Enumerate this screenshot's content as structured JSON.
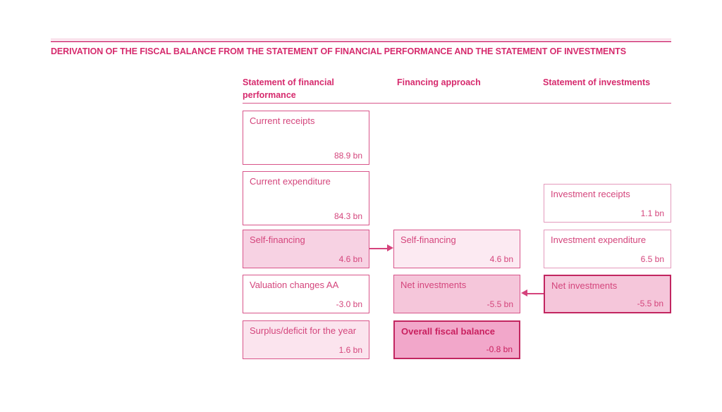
{
  "title": "DERIVATION OF THE FISCAL BALANCE FROM THE STATEMENT OF FINANCIAL PERFORMANCE AND THE STATEMENT OF INVESTMENTS",
  "columns": [
    {
      "label": "Statement of financial performance",
      "boxes": [
        {
          "label": "Current receipts",
          "value": "88.9 bn"
        },
        {
          "label": "Current expenditure",
          "value": "84.3 bn"
        },
        {
          "label": "Self-financing",
          "value": "4.6 bn"
        },
        {
          "label": "Valuation changes AA",
          "value": "-3.0 bn"
        },
        {
          "label": "Surplus/deficit for the year",
          "value": "1.6 bn"
        }
      ]
    },
    {
      "label": "Financing approach",
      "boxes": [
        {
          "label": "Self-financing",
          "value": "4.6 bn"
        },
        {
          "label": "Net investments",
          "value": "-5.5 bn"
        },
        {
          "label": "Overall fiscal balance",
          "value": "-0.8 bn"
        }
      ]
    },
    {
      "label": "Statement of investments",
      "boxes": [
        {
          "label": "Investment receipts",
          "value": "1.1 bn"
        },
        {
          "label": "Investment expenditure",
          "value": "6.5 bn"
        },
        {
          "label": "Net investments",
          "value": "-5.5 bn"
        }
      ]
    }
  ],
  "colors": {
    "accent": "#d62a6d",
    "box_border": "#d8558a",
    "box_border_light": "#e49abc",
    "box_border_dark": "#c22660",
    "fill_light": "#f7d2e3",
    "fill_lighter": "#fbe4ee",
    "fill_lightest": "#fceaf2",
    "fill_mid": "#f5c6da",
    "fill_strong": "#f2a7ca"
  }
}
